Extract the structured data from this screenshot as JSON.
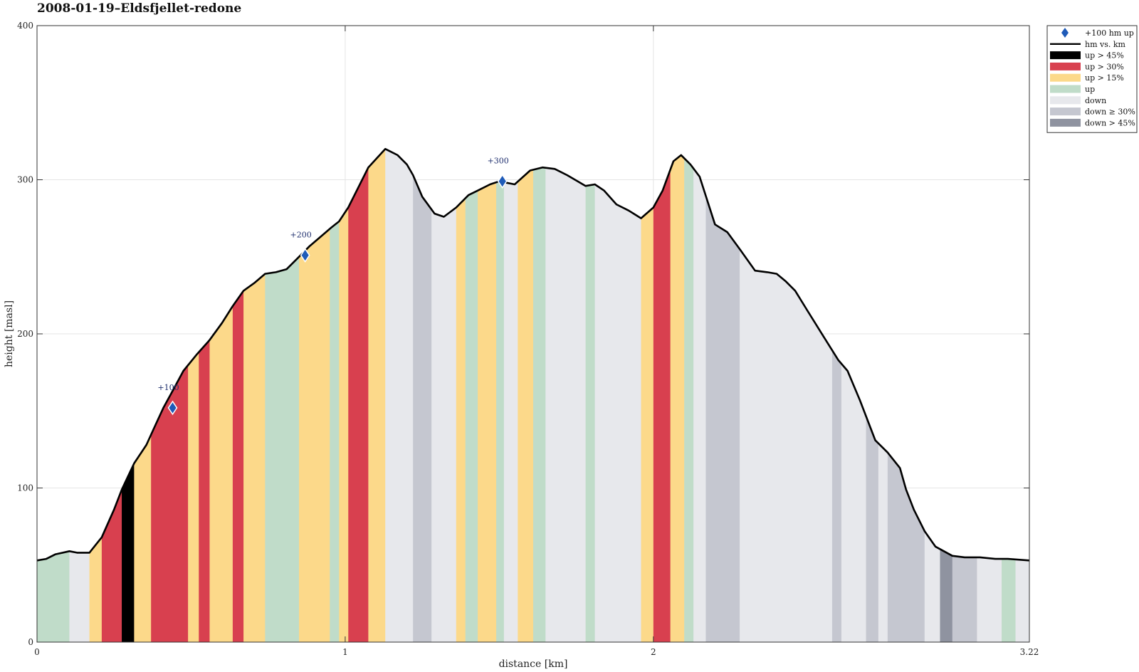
{
  "chart_data": {
    "type": "area",
    "title": "2008-01-19–Eldsfjellet-redone",
    "xlabel": "distance [km]",
    "ylabel": "height [masl]",
    "xlim": [
      0,
      3.22
    ],
    "ylim": [
      0,
      400
    ],
    "x_ticks": [
      0,
      1,
      2,
      3.22
    ],
    "x_tick_labels": [
      "0",
      "1",
      "2",
      "3.22"
    ],
    "y_ticks": [
      0,
      100,
      200,
      300,
      400
    ],
    "y_tick_labels": [
      "0",
      "100",
      "200",
      "300",
      "400"
    ],
    "grid": true,
    "legend_position": "top-right",
    "colors": {
      "up_45": "#000000",
      "up_30": "#d8404f",
      "up_15": "#fcd98a",
      "up": "#c0dcc9",
      "down": "#e7e8ec",
      "down_30": "#c5c7d0",
      "down_45": "#8f93a0",
      "line": "#000000",
      "marker": "#1f5bb8"
    },
    "legend": [
      {
        "key": "marker",
        "label": "+100 hm up"
      },
      {
        "key": "line",
        "label": "hm vs. km"
      },
      {
        "key": "up_45",
        "label": "up > 45%"
      },
      {
        "key": "up_30",
        "label": "up > 30%"
      },
      {
        "key": "up_15",
        "label": "up > 15%"
      },
      {
        "key": "up",
        "label": "up"
      },
      {
        "key": "down",
        "label": "down"
      },
      {
        "key": "down_30",
        "label": "down ≥ 30%"
      },
      {
        "key": "down_45",
        "label": "down > 45%"
      }
    ],
    "profile": {
      "x": [
        0,
        0.03,
        0.06,
        0.105,
        0.13,
        0.17,
        0.21,
        0.25,
        0.275,
        0.315,
        0.355,
        0.38,
        0.41,
        0.44,
        0.475,
        0.52,
        0.56,
        0.6,
        0.635,
        0.67,
        0.705,
        0.74,
        0.775,
        0.81,
        0.85,
        0.885,
        0.92,
        0.955,
        0.98,
        1.01,
        1.045,
        1.075,
        1.13,
        1.17,
        1.2,
        1.22,
        1.25,
        1.29,
        1.32,
        1.36,
        1.4,
        1.43,
        1.47,
        1.5,
        1.55,
        1.6,
        1.64,
        1.68,
        1.72,
        1.78,
        1.81,
        1.84,
        1.88,
        1.92,
        1.96,
        2.0,
        2.03,
        2.065,
        2.09,
        2.12,
        2.15,
        2.2,
        2.24,
        2.28,
        2.33,
        2.37,
        2.4,
        2.43,
        2.46,
        2.5,
        2.55,
        2.6,
        2.63,
        2.67,
        2.72,
        2.76,
        2.8,
        2.82,
        2.845,
        2.88,
        2.915,
        2.97,
        3.01,
        3.06,
        3.11,
        3.15,
        3.22
      ],
      "y": [
        53,
        54,
        57,
        59,
        58,
        58,
        68,
        86,
        99,
        116,
        128,
        139,
        152,
        163,
        176,
        187,
        196,
        207,
        218,
        228,
        233,
        239,
        240,
        242,
        250,
        257,
        263,
        269,
        273,
        282,
        296,
        308,
        320,
        316,
        310,
        303,
        289,
        278,
        276,
        282,
        290,
        293,
        297,
        299,
        297,
        306,
        308,
        307,
        303,
        296,
        297,
        293,
        284,
        280,
        275,
        282,
        293,
        312,
        316,
        310,
        302,
        271,
        266,
        255,
        241,
        240,
        239,
        234,
        228,
        215,
        199,
        183,
        176,
        157,
        131,
        123,
        113,
        99,
        86,
        72,
        62,
        56,
        55,
        55,
        54,
        54,
        53
      ]
    },
    "segments": [
      {
        "from": 0,
        "to": 0.105,
        "class": "up"
      },
      {
        "from": 0.105,
        "to": 0.17,
        "class": "down"
      },
      {
        "from": 0.17,
        "to": 0.21,
        "class": "up_15"
      },
      {
        "from": 0.21,
        "to": 0.275,
        "class": "up_30"
      },
      {
        "from": 0.275,
        "to": 0.315,
        "class": "up_45"
      },
      {
        "from": 0.315,
        "to": 0.37,
        "class": "up_15"
      },
      {
        "from": 0.37,
        "to": 0.49,
        "class": "up_30"
      },
      {
        "from": 0.49,
        "to": 0.525,
        "class": "up_15"
      },
      {
        "from": 0.525,
        "to": 0.56,
        "class": "up_30"
      },
      {
        "from": 0.56,
        "to": 0.635,
        "class": "up_15"
      },
      {
        "from": 0.635,
        "to": 0.67,
        "class": "up_30"
      },
      {
        "from": 0.67,
        "to": 0.74,
        "class": "up_15"
      },
      {
        "from": 0.74,
        "to": 0.85,
        "class": "up"
      },
      {
        "from": 0.85,
        "to": 0.95,
        "class": "up_15"
      },
      {
        "from": 0.95,
        "to": 0.98,
        "class": "up"
      },
      {
        "from": 0.98,
        "to": 1.01,
        "class": "up_15"
      },
      {
        "from": 1.01,
        "to": 1.075,
        "class": "up_30"
      },
      {
        "from": 1.075,
        "to": 1.13,
        "class": "up_15"
      },
      {
        "from": 1.13,
        "to": 1.22,
        "class": "down"
      },
      {
        "from": 1.22,
        "to": 1.28,
        "class": "down_30"
      },
      {
        "from": 1.28,
        "to": 1.36,
        "class": "down"
      },
      {
        "from": 1.36,
        "to": 1.39,
        "class": "up_15"
      },
      {
        "from": 1.39,
        "to": 1.43,
        "class": "up"
      },
      {
        "from": 1.43,
        "to": 1.49,
        "class": "up_15"
      },
      {
        "from": 1.49,
        "to": 1.515,
        "class": "up"
      },
      {
        "from": 1.515,
        "to": 1.56,
        "class": "down"
      },
      {
        "from": 1.56,
        "to": 1.61,
        "class": "up_15"
      },
      {
        "from": 1.61,
        "to": 1.65,
        "class": "up"
      },
      {
        "from": 1.65,
        "to": 1.78,
        "class": "down"
      },
      {
        "from": 1.78,
        "to": 1.81,
        "class": "up"
      },
      {
        "from": 1.81,
        "to": 1.96,
        "class": "down"
      },
      {
        "from": 1.96,
        "to": 2.0,
        "class": "up_15"
      },
      {
        "from": 2.0,
        "to": 2.055,
        "class": "up_30"
      },
      {
        "from": 2.055,
        "to": 2.1,
        "class": "up_15"
      },
      {
        "from": 2.1,
        "to": 2.13,
        "class": "up"
      },
      {
        "from": 2.13,
        "to": 2.17,
        "class": "down"
      },
      {
        "from": 2.17,
        "to": 2.28,
        "class": "down_30"
      },
      {
        "from": 2.28,
        "to": 2.58,
        "class": "down"
      },
      {
        "from": 2.58,
        "to": 2.61,
        "class": "down_30"
      },
      {
        "from": 2.61,
        "to": 2.69,
        "class": "down"
      },
      {
        "from": 2.69,
        "to": 2.73,
        "class": "down_30"
      },
      {
        "from": 2.73,
        "to": 2.76,
        "class": "down"
      },
      {
        "from": 2.76,
        "to": 2.88,
        "class": "down_30"
      },
      {
        "from": 2.88,
        "to": 2.93,
        "class": "down"
      },
      {
        "from": 2.93,
        "to": 2.97,
        "class": "down_45"
      },
      {
        "from": 2.97,
        "to": 3.05,
        "class": "down_30"
      },
      {
        "from": 3.05,
        "to": 3.13,
        "class": "down"
      },
      {
        "from": 3.13,
        "to": 3.175,
        "class": "up"
      },
      {
        "from": 3.175,
        "to": 3.22,
        "class": "down"
      }
    ],
    "markers": [
      {
        "x": 0.44,
        "y": 152,
        "label": "+100"
      },
      {
        "x": 0.87,
        "y": 251,
        "label": "+200"
      },
      {
        "x": 1.51,
        "y": 299,
        "label": "+300"
      }
    ]
  }
}
